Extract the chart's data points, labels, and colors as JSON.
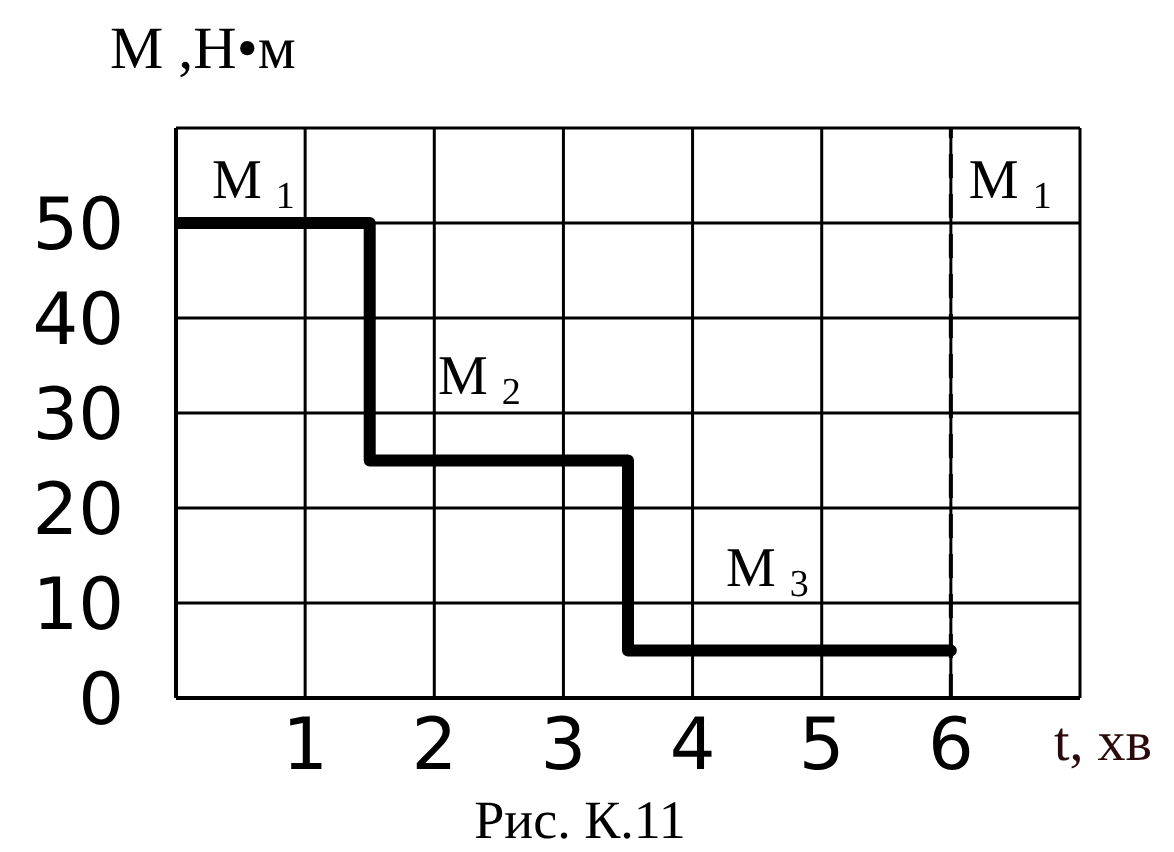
{
  "chart_data": {
    "type": "step",
    "ylabel": "M ,Н•м",
    "xlabel": "t, хв",
    "annotations": [
      "M$_{1}$",
      "M$_{2}$",
      "M$_{3}$",
      "Рис. К.11"
    ],
    "x": [
      0,
      1.5,
      3.5,
      6
    ],
    "values": [
      50,
      25,
      5,
      5
    ],
    "color": "#000000",
    "xlim": [
      0,
      7
    ],
    "xticks": [
      1,
      2,
      3,
      4,
      5,
      6,
      {
        "value": 7,
        "label": null
      }
    ],
    "ylim": [
      0,
      60
    ],
    "yticks": [
      0,
      10,
      20,
      30,
      40,
      50,
      {
        "value": 60,
        "label": null
      }
    ],
    "grid": true,
    "marker": "none",
    "line_style": "solid",
    "ref_lines": [
      {
        "axis": "x",
        "value": 6,
        "label": "M$_{1}$",
        "line_style": "dashed",
        "color": "#000000"
      }
    ]
  }
}
